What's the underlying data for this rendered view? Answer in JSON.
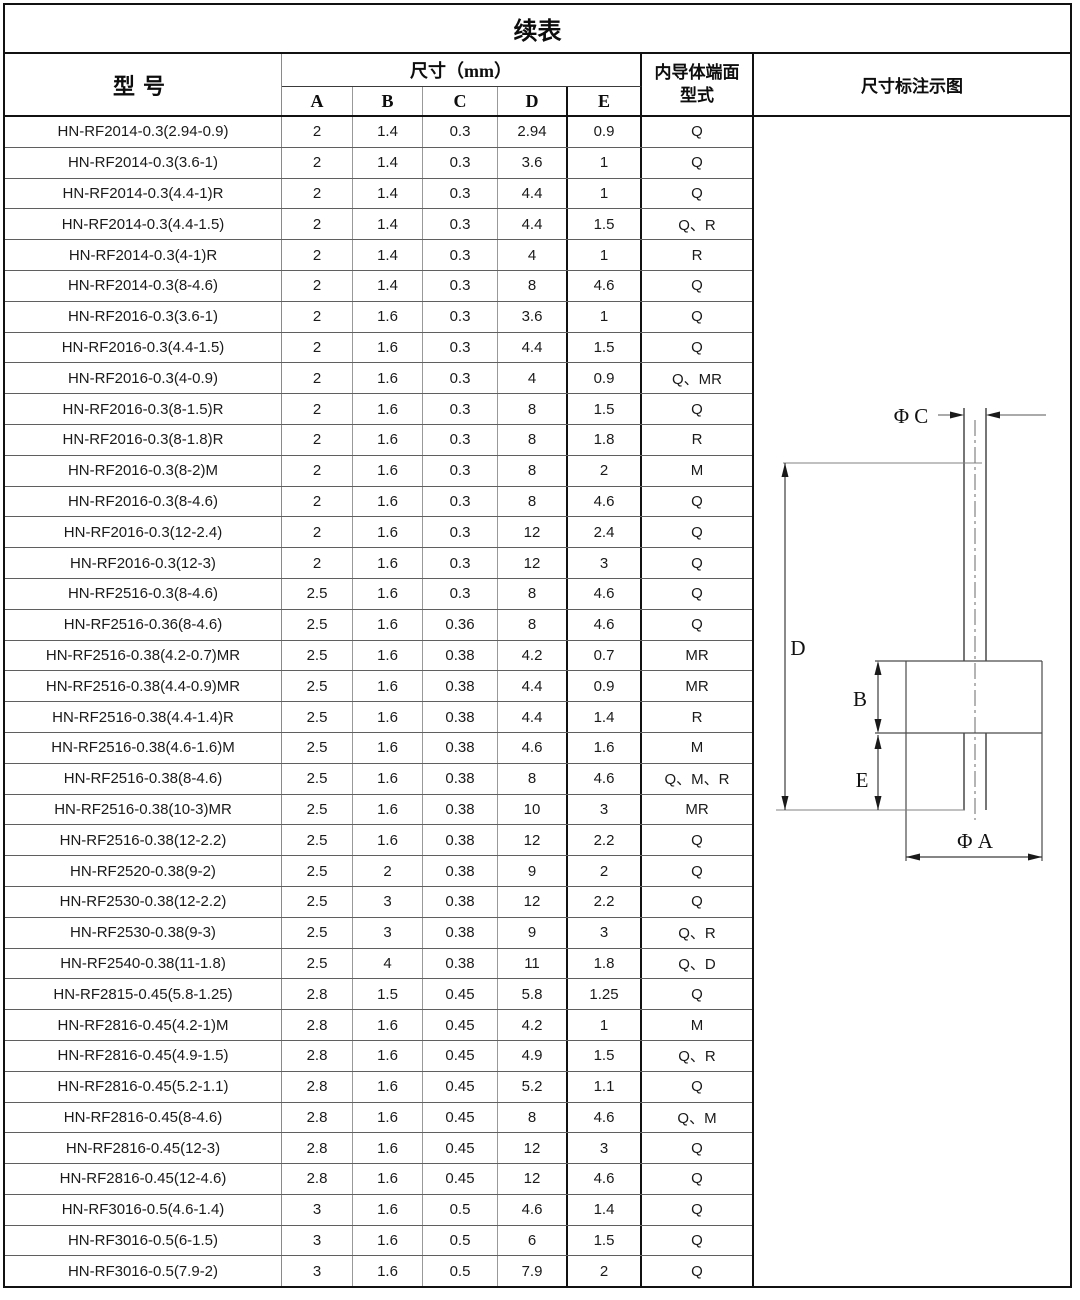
{
  "page": {
    "title": "续表"
  },
  "table": {
    "headers": {
      "model": "型号",
      "size_group": "尺寸（mm）",
      "size_cols": [
        "A",
        "B",
        "C",
        "D",
        "E"
      ],
      "conductor_line1": "内导体端面",
      "conductor_line2": "型式",
      "diagram": "尺寸标注示图"
    },
    "rows": [
      {
        "model": "HN-RF2014-0.3(2.94-0.9)",
        "a": "2",
        "b": "1.4",
        "c": "0.3",
        "d": "2.94",
        "e": "0.9",
        "type": "Q"
      },
      {
        "model": "HN-RF2014-0.3(3.6-1)",
        "a": "2",
        "b": "1.4",
        "c": "0.3",
        "d": "3.6",
        "e": "1",
        "type": "Q"
      },
      {
        "model": "HN-RF2014-0.3(4.4-1)R",
        "a": "2",
        "b": "1.4",
        "c": "0.3",
        "d": "4.4",
        "e": "1",
        "type": "Q"
      },
      {
        "model": "HN-RF2014-0.3(4.4-1.5)",
        "a": "2",
        "b": "1.4",
        "c": "0.3",
        "d": "4.4",
        "e": "1.5",
        "type": "Q、R"
      },
      {
        "model": "HN-RF2014-0.3(4-1)R",
        "a": "2",
        "b": "1.4",
        "c": "0.3",
        "d": "4",
        "e": "1",
        "type": "R"
      },
      {
        "model": "HN-RF2014-0.3(8-4.6)",
        "a": "2",
        "b": "1.4",
        "c": "0.3",
        "d": "8",
        "e": "4.6",
        "type": "Q"
      },
      {
        "model": "HN-RF2016-0.3(3.6-1)",
        "a": "2",
        "b": "1.6",
        "c": "0.3",
        "d": "3.6",
        "e": "1",
        "type": "Q"
      },
      {
        "model": "HN-RF2016-0.3(4.4-1.5)",
        "a": "2",
        "b": "1.6",
        "c": "0.3",
        "d": "4.4",
        "e": "1.5",
        "type": "Q"
      },
      {
        "model": "HN-RF2016-0.3(4-0.9)",
        "a": "2",
        "b": "1.6",
        "c": "0.3",
        "d": "4",
        "e": "0.9",
        "type": "Q、MR"
      },
      {
        "model": "HN-RF2016-0.3(8-1.5)R",
        "a": "2",
        "b": "1.6",
        "c": "0.3",
        "d": "8",
        "e": "1.5",
        "type": "Q"
      },
      {
        "model": "HN-RF2016-0.3(8-1.8)R",
        "a": "2",
        "b": "1.6",
        "c": "0.3",
        "d": "8",
        "e": "1.8",
        "type": "R"
      },
      {
        "model": "HN-RF2016-0.3(8-2)M",
        "a": "2",
        "b": "1.6",
        "c": "0.3",
        "d": "8",
        "e": "2",
        "type": "M"
      },
      {
        "model": "HN-RF2016-0.3(8-4.6)",
        "a": "2",
        "b": "1.6",
        "c": "0.3",
        "d": "8",
        "e": "4.6",
        "type": "Q"
      },
      {
        "model": "HN-RF2016-0.3(12-2.4)",
        "a": "2",
        "b": "1.6",
        "c": "0.3",
        "d": "12",
        "e": "2.4",
        "type": "Q"
      },
      {
        "model": "HN-RF2016-0.3(12-3)",
        "a": "2",
        "b": "1.6",
        "c": "0.3",
        "d": "12",
        "e": "3",
        "type": "Q"
      },
      {
        "model": "HN-RF2516-0.3(8-4.6)",
        "a": "2.5",
        "b": "1.6",
        "c": "0.3",
        "d": "8",
        "e": "4.6",
        "type": "Q"
      },
      {
        "model": "HN-RF2516-0.36(8-4.6)",
        "a": "2.5",
        "b": "1.6",
        "c": "0.36",
        "d": "8",
        "e": "4.6",
        "type": "Q"
      },
      {
        "model": "HN-RF2516-0.38(4.2-0.7)MR",
        "a": "2.5",
        "b": "1.6",
        "c": "0.38",
        "d": "4.2",
        "e": "0.7",
        "type": "MR"
      },
      {
        "model": "HN-RF2516-0.38(4.4-0.9)MR",
        "a": "2.5",
        "b": "1.6",
        "c": "0.38",
        "d": "4.4",
        "e": "0.9",
        "type": "MR"
      },
      {
        "model": "HN-RF2516-0.38(4.4-1.4)R",
        "a": "2.5",
        "b": "1.6",
        "c": "0.38",
        "d": "4.4",
        "e": "1.4",
        "type": "R"
      },
      {
        "model": "HN-RF2516-0.38(4.6-1.6)M",
        "a": "2.5",
        "b": "1.6",
        "c": "0.38",
        "d": "4.6",
        "e": "1.6",
        "type": "M"
      },
      {
        "model": "HN-RF2516-0.38(8-4.6)",
        "a": "2.5",
        "b": "1.6",
        "c": "0.38",
        "d": "8",
        "e": "4.6",
        "type": "Q、M、R"
      },
      {
        "model": "HN-RF2516-0.38(10-3)MR",
        "a": "2.5",
        "b": "1.6",
        "c": "0.38",
        "d": "10",
        "e": "3",
        "type": "MR"
      },
      {
        "model": "HN-RF2516-0.38(12-2.2)",
        "a": "2.5",
        "b": "1.6",
        "c": "0.38",
        "d": "12",
        "e": "2.2",
        "type": "Q"
      },
      {
        "model": "HN-RF2520-0.38(9-2)",
        "a": "2.5",
        "b": "2",
        "c": "0.38",
        "d": "9",
        "e": "2",
        "type": "Q"
      },
      {
        "model": "HN-RF2530-0.38(12-2.2)",
        "a": "2.5",
        "b": "3",
        "c": "0.38",
        "d": "12",
        "e": "2.2",
        "type": "Q"
      },
      {
        "model": "HN-RF2530-0.38(9-3)",
        "a": "2.5",
        "b": "3",
        "c": "0.38",
        "d": "9",
        "e": "3",
        "type": "Q、R"
      },
      {
        "model": "HN-RF2540-0.38(11-1.8)",
        "a": "2.5",
        "b": "4",
        "c": "0.38",
        "d": "11",
        "e": "1.8",
        "type": "Q、D"
      },
      {
        "model": "HN-RF2815-0.45(5.8-1.25)",
        "a": "2.8",
        "b": "1.5",
        "c": "0.45",
        "d": "5.8",
        "e": "1.25",
        "type": "Q"
      },
      {
        "model": "HN-RF2816-0.45(4.2-1)M",
        "a": "2.8",
        "b": "1.6",
        "c": "0.45",
        "d": "4.2",
        "e": "1",
        "type": "M"
      },
      {
        "model": "HN-RF2816-0.45(4.9-1.5)",
        "a": "2.8",
        "b": "1.6",
        "c": "0.45",
        "d": "4.9",
        "e": "1.5",
        "type": "Q、R"
      },
      {
        "model": "HN-RF2816-0.45(5.2-1.1)",
        "a": "2.8",
        "b": "1.6",
        "c": "0.45",
        "d": "5.2",
        "e": "1.1",
        "type": "Q"
      },
      {
        "model": "HN-RF2816-0.45(8-4.6)",
        "a": "2.8",
        "b": "1.6",
        "c": "0.45",
        "d": "8",
        "e": "4.6",
        "type": "Q、M"
      },
      {
        "model": "HN-RF2816-0.45(12-3)",
        "a": "2.8",
        "b": "1.6",
        "c": "0.45",
        "d": "12",
        "e": "3",
        "type": "Q"
      },
      {
        "model": "HN-RF2816-0.45(12-4.6)",
        "a": "2.8",
        "b": "1.6",
        "c": "0.45",
        "d": "12",
        "e": "4.6",
        "type": "Q"
      },
      {
        "model": "HN-RF3016-0.5(4.6-1.4)",
        "a": "3",
        "b": "1.6",
        "c": "0.5",
        "d": "4.6",
        "e": "1.4",
        "type": "Q"
      },
      {
        "model": "HN-RF3016-0.5(6-1.5)",
        "a": "3",
        "b": "1.6",
        "c": "0.5",
        "d": "6",
        "e": "1.5",
        "type": "Q"
      },
      {
        "model": "HN-RF3016-0.5(7.9-2)",
        "a": "3",
        "b": "1.6",
        "c": "0.5",
        "d": "7.9",
        "e": "2",
        "type": "Q"
      }
    ]
  },
  "diagram": {
    "labels": {
      "phi_c": "Φ C",
      "phi_a": "Φ A",
      "d": "D",
      "b": "B",
      "e": "E"
    }
  }
}
